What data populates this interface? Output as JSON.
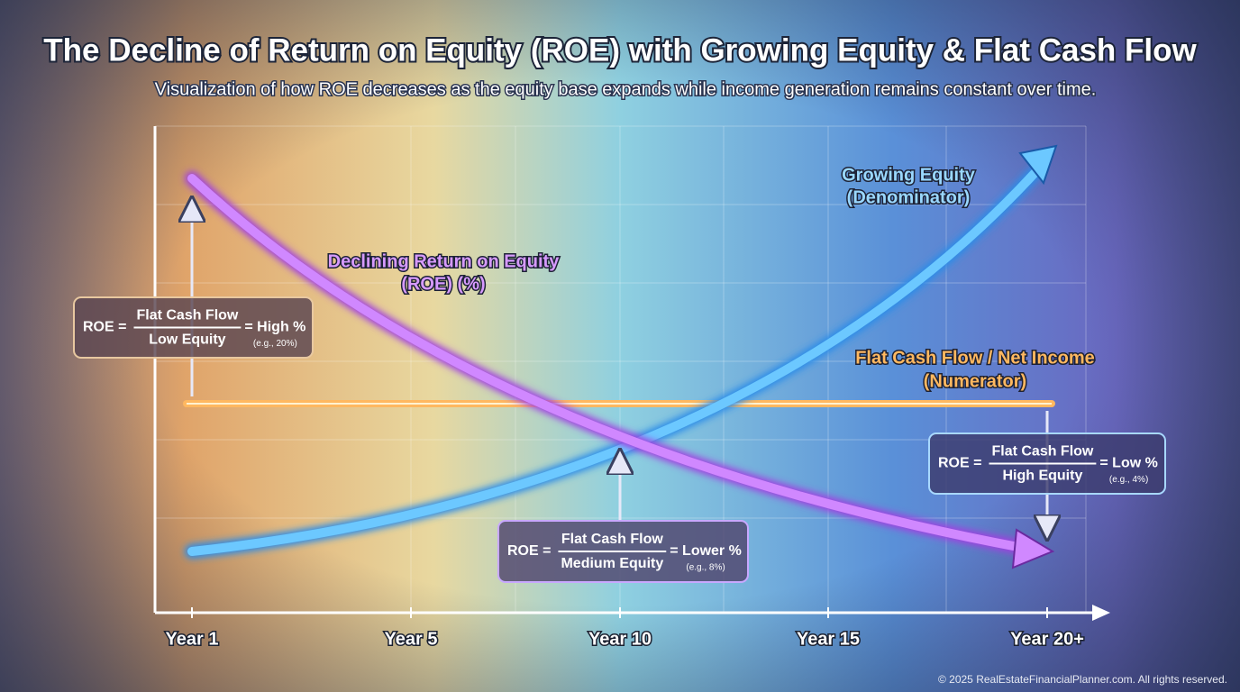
{
  "title": "The Decline of Return on Equity (ROE) with Growing Equity & Flat Cash Flow",
  "subtitle": "Visualization of how ROE decreases as the equity base expands while income generation remains constant over time.",
  "x_axis": {
    "labels": [
      "Year 1",
      "Year 5",
      "Year 10",
      "Year 15",
      "Year 20+"
    ]
  },
  "curves": [
    {
      "label_lines": [
        "Growing Equity",
        "(Denominator)"
      ]
    },
    {
      "label_lines": [
        "Declining Return on Equity",
        "(ROE) (%)"
      ]
    },
    {
      "label_lines": [
        "Flat Cash Flow / Net Income",
        "(Numerator)"
      ]
    }
  ],
  "formulas": [
    {
      "lhs": "ROE =",
      "numerator": "Flat Cash Flow",
      "denominator": "Low Equity",
      "result": "= High %",
      "example": "(e.g., 20%)"
    },
    {
      "lhs": "ROE =",
      "numerator": "Flat Cash Flow",
      "denominator": "Medium Equity",
      "result": "= Lower %",
      "example": "(e.g., 8%)"
    },
    {
      "lhs": "ROE =",
      "numerator": "Flat Cash Flow",
      "denominator": "High Equity",
      "result": "= Low %",
      "example": "(e.g., 4%)"
    }
  ],
  "footer": "© 2025 RealEstateFinancialPlanner.com. All rights reserved."
}
